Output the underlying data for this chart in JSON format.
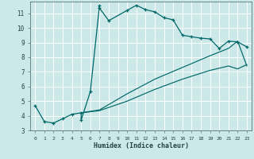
{
  "xlabel": "Humidex (Indice chaleur)",
  "bg_color": "#cce8e8",
  "grid_color": "#ffffff",
  "line_color": "#006868",
  "xlim": [
    -0.5,
    23.5
  ],
  "ylim": [
    3,
    11.8
  ],
  "xticks": [
    0,
    1,
    2,
    3,
    4,
    5,
    6,
    7,
    8,
    9,
    10,
    11,
    12,
    13,
    14,
    15,
    16,
    17,
    18,
    19,
    20,
    21,
    22,
    23
  ],
  "yticks": [
    3,
    4,
    5,
    6,
    7,
    8,
    9,
    10,
    11
  ],
  "line1_x": [
    0,
    1,
    2,
    3,
    4,
    5,
    5,
    6,
    7,
    7,
    8,
    10,
    11,
    12,
    13,
    14,
    15,
    16,
    17,
    18,
    19,
    20,
    21,
    22,
    23
  ],
  "line1_y": [
    4.7,
    3.6,
    3.5,
    3.8,
    4.1,
    4.2,
    3.7,
    5.65,
    11.55,
    11.35,
    10.5,
    11.2,
    11.55,
    11.25,
    11.1,
    10.7,
    10.55,
    9.5,
    9.4,
    9.3,
    9.25,
    8.6,
    9.1,
    9.05,
    8.7
  ],
  "line2_x": [
    5,
    7,
    10,
    13,
    16,
    19,
    21,
    22,
    23
  ],
  "line2_y": [
    4.2,
    4.4,
    5.5,
    6.5,
    7.3,
    8.1,
    8.6,
    9.1,
    7.4
  ],
  "line3_x": [
    5,
    7,
    10,
    13,
    16,
    19,
    21,
    22,
    23
  ],
  "line3_y": [
    4.2,
    4.35,
    5.0,
    5.8,
    6.5,
    7.1,
    7.4,
    7.2,
    7.5
  ]
}
